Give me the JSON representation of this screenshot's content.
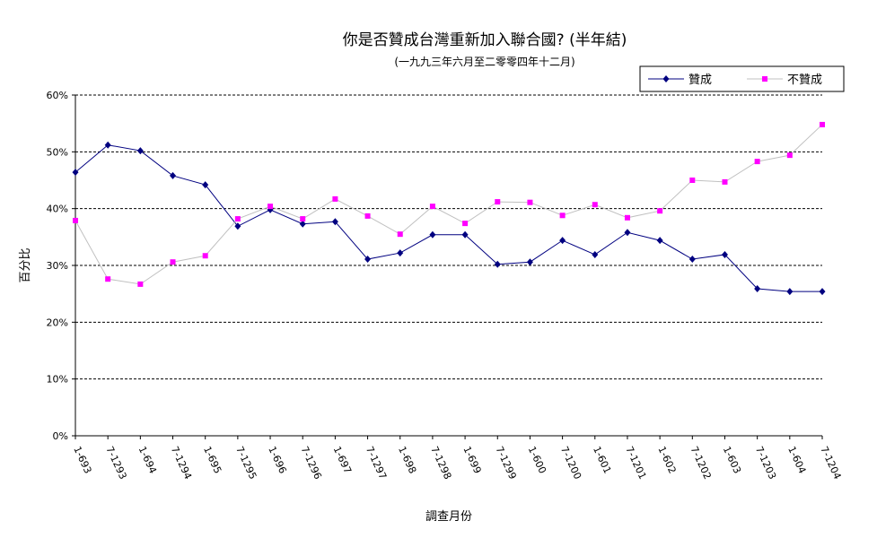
{
  "chart_data": {
    "type": "line",
    "title": "你是否贊成台灣重新加入聯合國? (半年結)",
    "subtitle": "(一九九三年六月至二零零四年十二月)",
    "xlabel": "調查月份",
    "ylabel": "百分比",
    "ylim": [
      0,
      60
    ],
    "yticks": [
      "0%",
      "10%",
      "20%",
      "30%",
      "40%",
      "50%",
      "60%"
    ],
    "grid": true,
    "legend_position": "top-right",
    "categories": [
      "1-693",
      "7-1293",
      "1-694",
      "7-1294",
      "1-695",
      "7-1295",
      "1-696",
      "7-1296",
      "1-697",
      "7-1297",
      "1-698",
      "7-1298",
      "1-699",
      "7-1299",
      "1-600",
      "7-1200",
      "1-601",
      "7-1201",
      "1-602",
      "7-1202",
      "1-603",
      "7-1203",
      "1-604",
      "7-1204"
    ],
    "series": [
      {
        "name": "贊成",
        "color": "#000080",
        "values": [
          46.4,
          51.2,
          50.2,
          45.8,
          44.2,
          36.9,
          39.8,
          37.3,
          37.7,
          31.1,
          32.2,
          35.4,
          35.4,
          30.2,
          30.6,
          34.4,
          31.9,
          35.8,
          34.4,
          31.1,
          31.9,
          25.9,
          25.4,
          25.4
        ]
      },
      {
        "name": "不贊成",
        "color": "#FF00FF",
        "line_color": "#C0C0C0",
        "values": [
          37.9,
          27.6,
          26.7,
          30.6,
          31.7,
          38.2,
          40.4,
          38.2,
          41.7,
          38.7,
          35.5,
          40.4,
          37.4,
          41.2,
          41.1,
          38.8,
          40.7,
          38.4,
          39.6,
          45.0,
          44.7,
          48.3,
          49.4,
          54.8
        ]
      }
    ]
  }
}
